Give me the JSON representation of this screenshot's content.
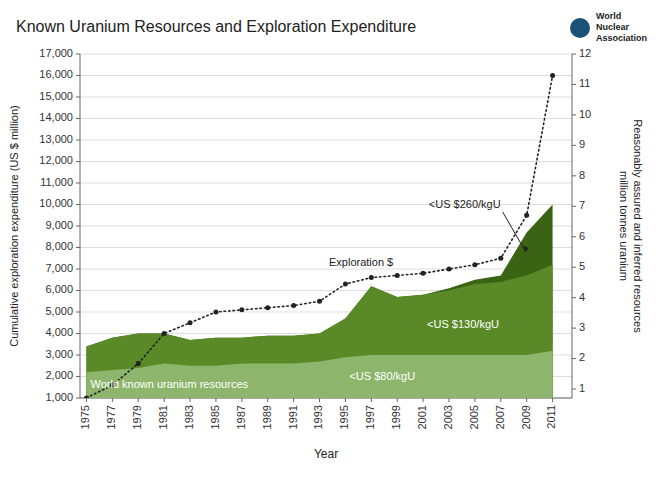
{
  "chart_data": {
    "type": "area",
    "title": "Known Uranium Resources and Exploration Expenditure",
    "xlabel": "Year",
    "ylabel": "Cumulative exploration expenditure (US $ million)",
    "y2label": "Reasonably assured and inferred resources\nmillion tonnes uranium",
    "x": [
      1975,
      1977,
      1979,
      1981,
      1983,
      1985,
      1987,
      1989,
      1991,
      1993,
      1995,
      1997,
      1999,
      2001,
      2003,
      2005,
      2007,
      2009,
      2011
    ],
    "series": [
      {
        "name": "<US $80/kgU",
        "type": "area",
        "color": "#8db56b",
        "values": [
          2200,
          2300,
          2400,
          2600,
          2500,
          2500,
          2600,
          2600,
          2600,
          2700,
          2900,
          3000,
          3000,
          3000,
          3000,
          3000,
          3000,
          3000,
          3200
        ]
      },
      {
        "name": "<US $130/kgU",
        "type": "area",
        "color": "#5a8a28",
        "values": [
          3400,
          3800,
          4000,
          4000,
          3700,
          3800,
          3800,
          3900,
          3900,
          4000,
          4700,
          6200,
          5700,
          5800,
          6000,
          6300,
          6400,
          6700,
          7200
        ]
      },
      {
        "name": "<US $260/kgU",
        "type": "area",
        "color": "#3a6414",
        "values": [
          3400,
          3800,
          4000,
          4000,
          3700,
          3800,
          3800,
          3900,
          3900,
          4000,
          4700,
          6200,
          5700,
          5800,
          6100,
          6500,
          6700,
          8700,
          10000
        ]
      },
      {
        "name": "Exploration $",
        "type": "line",
        "color": "#222222",
        "marker": "circle",
        "line_style": "dotted",
        "values": [
          1000,
          1600,
          2600,
          4000,
          4500,
          5000,
          5100,
          5200,
          5300,
          5500,
          6300,
          6600,
          6700,
          6800,
          7000,
          7200,
          7500,
          9500,
          16000
        ]
      }
    ],
    "xlim": [
      1974.5,
      2012.5
    ],
    "xticks": [
      1975,
      1977,
      1979,
      1981,
      1983,
      1985,
      1987,
      1989,
      1991,
      1993,
      1995,
      1997,
      1999,
      2001,
      2003,
      2005,
      2007,
      2009,
      2011
    ],
    "ylim": [
      1000,
      17000
    ],
    "yticks": [
      {
        "value": 1000,
        "label": "1,000"
      },
      {
        "value": 2000,
        "label": "2,000"
      },
      {
        "value": 3000,
        "label": "3,000"
      },
      {
        "value": 4000,
        "label": "4,000"
      },
      {
        "value": 5000,
        "label": "5,000"
      },
      {
        "value": 6000,
        "label": "6,000"
      },
      {
        "value": 7000,
        "label": "7,000"
      },
      {
        "value": 8000,
        "label": "8,000"
      },
      {
        "value": 9000,
        "label": "9,000"
      },
      {
        "value": 10000,
        "label": "10,000"
      },
      {
        "value": 11000,
        "label": "11,000"
      },
      {
        "value": 12000,
        "label": "12,000"
      },
      {
        "value": 13000,
        "label": "13,000"
      },
      {
        "value": 14000,
        "label": "14,000"
      },
      {
        "value": 15000,
        "label": "15,000"
      },
      {
        "value": 16000,
        "label": "16,000"
      },
      {
        "value": 17000,
        "label": "17,000"
      }
    ],
    "y2lim": [
      0.70588,
      12
    ],
    "y2ticks": [
      1,
      2,
      3,
      4,
      5,
      6,
      7,
      8,
      9,
      10,
      11,
      12
    ],
    "grid": true,
    "annotations": [
      "World known uranium resources",
      "World",
      "Nuclear",
      "Association"
    ]
  }
}
